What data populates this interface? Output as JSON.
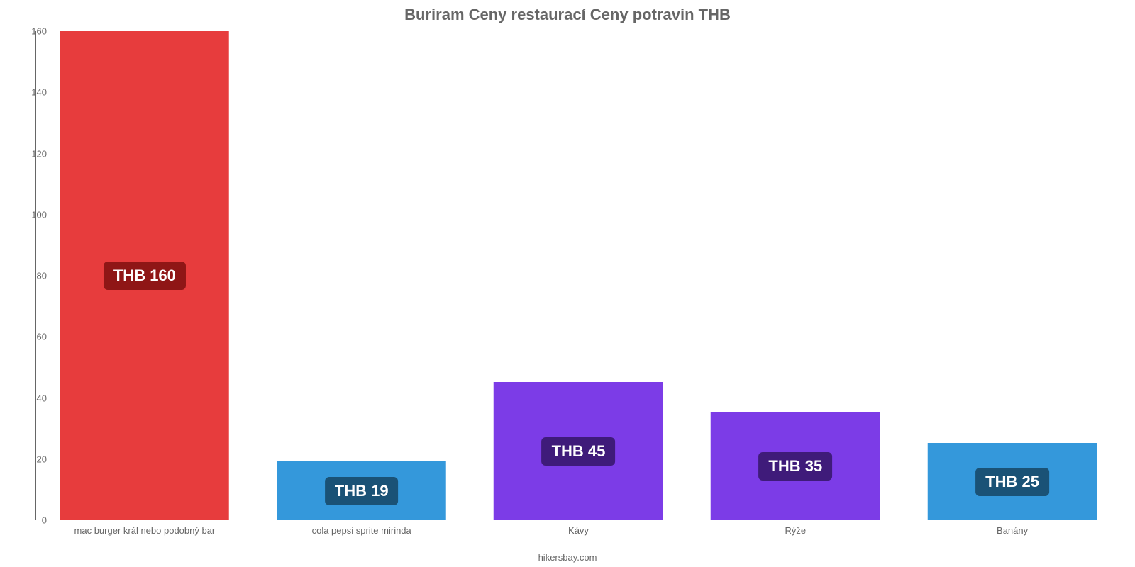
{
  "chart": {
    "type": "bar",
    "title": "Buriram Ceny restaurací Ceny potravin THB",
    "title_fontsize": 22,
    "title_color": "#666666",
    "footer": "hikersbay.com",
    "footer_color": "#666666",
    "background_color": "#ffffff",
    "axis_color": "#666666",
    "tick_label_color": "#666666",
    "tick_label_fontsize": 13,
    "ylim": [
      0,
      160
    ],
    "ytick_step": 20,
    "yticks": [
      0,
      20,
      40,
      60,
      80,
      100,
      120,
      140,
      160
    ],
    "bar_width_ratio": 0.78,
    "value_prefix": "THB ",
    "value_badge_fontsize": 22,
    "value_badge_radius": 6,
    "categories": [
      {
        "label": "mac burger král nebo podobný bar",
        "value": 160,
        "value_text": "THB 160",
        "bar_color": "#e73c3d",
        "badge_bg": "#8f1616",
        "badge_text": "#ffffff"
      },
      {
        "label": "cola pepsi sprite mirinda",
        "value": 19,
        "value_text": "THB 19",
        "bar_color": "#3498db",
        "badge_bg": "#1a5276",
        "badge_text": "#ffffff"
      },
      {
        "label": "Kávy",
        "value": 45,
        "value_text": "THB 45",
        "bar_color": "#7c3ce7",
        "badge_bg": "#3f1b7a",
        "badge_text": "#ffffff"
      },
      {
        "label": "Rýže",
        "value": 35,
        "value_text": "THB 35",
        "bar_color": "#7c3ce7",
        "badge_bg": "#3f1b7a",
        "badge_text": "#ffffff"
      },
      {
        "label": "Banány",
        "value": 25,
        "value_text": "THB 25",
        "bar_color": "#3498db",
        "badge_bg": "#1a5276",
        "badge_text": "#ffffff"
      }
    ]
  }
}
